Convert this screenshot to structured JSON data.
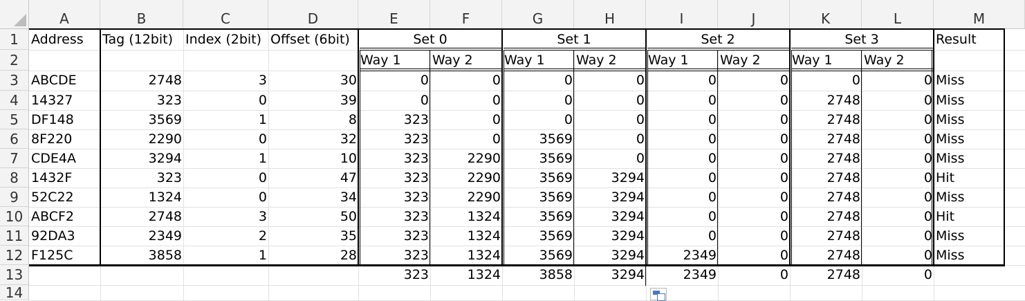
{
  "columns": [
    "A",
    "B",
    "C",
    "D",
    "E",
    "F",
    "G",
    "H",
    "I",
    "J",
    "K",
    "L",
    "M"
  ],
  "rows": [
    "1",
    "2",
    "3",
    "4",
    "5",
    "6",
    "7",
    "8",
    "9",
    "10",
    "11",
    "12",
    "13",
    "14"
  ],
  "header": {
    "address": "Address",
    "tag": "Tag (12bit)",
    "index": "Index (2bit)",
    "offset": "Offset (6bit)",
    "sets": [
      "Set 0",
      "Set 1",
      "Set 2",
      "Set 3"
    ],
    "result": "Result",
    "way1": "Way 1",
    "way2": "Way 2"
  },
  "table": [
    {
      "address": "ABCDE",
      "tag": "2748",
      "index": "3",
      "offset": "30",
      "ways": [
        "0",
        "0",
        "0",
        "0",
        "0",
        "0",
        "0",
        "0"
      ],
      "result": "Miss"
    },
    {
      "address": "14327",
      "tag": "323",
      "index": "0",
      "offset": "39",
      "ways": [
        "0",
        "0",
        "0",
        "0",
        "0",
        "0",
        "2748",
        "0"
      ],
      "result": "Miss"
    },
    {
      "address": "DF148",
      "tag": "3569",
      "index": "1",
      "offset": "8",
      "ways": [
        "323",
        "0",
        "0",
        "0",
        "0",
        "0",
        "2748",
        "0"
      ],
      "result": "Miss"
    },
    {
      "address": "8F220",
      "tag": "2290",
      "index": "0",
      "offset": "32",
      "ways": [
        "323",
        "0",
        "3569",
        "0",
        "0",
        "0",
        "2748",
        "0"
      ],
      "result": "Miss"
    },
    {
      "address": "CDE4A",
      "tag": "3294",
      "index": "1",
      "offset": "10",
      "ways": [
        "323",
        "2290",
        "3569",
        "0",
        "0",
        "0",
        "2748",
        "0"
      ],
      "result": "Miss"
    },
    {
      "address": "1432F",
      "tag": "323",
      "index": "0",
      "offset": "47",
      "ways": [
        "323",
        "2290",
        "3569",
        "3294",
        "0",
        "0",
        "2748",
        "0"
      ],
      "result": "Hit"
    },
    {
      "address": "52C22",
      "tag": "1324",
      "index": "0",
      "offset": "34",
      "ways": [
        "323",
        "2290",
        "3569",
        "3294",
        "0",
        "0",
        "2748",
        "0"
      ],
      "result": "Miss"
    },
    {
      "address": "ABCF2",
      "tag": "2748",
      "index": "3",
      "offset": "50",
      "ways": [
        "323",
        "1324",
        "3569",
        "3294",
        "0",
        "0",
        "2748",
        "0"
      ],
      "result": "Hit"
    },
    {
      "address": "92DA3",
      "tag": "2349",
      "index": "2",
      "offset": "35",
      "ways": [
        "323",
        "1324",
        "3569",
        "3294",
        "0",
        "0",
        "2748",
        "0"
      ],
      "result": "Miss"
    },
    {
      "address": "F125C",
      "tag": "3858",
      "index": "1",
      "offset": "28",
      "ways": [
        "323",
        "1324",
        "3569",
        "3294",
        "2349",
        "0",
        "2748",
        "0"
      ],
      "result": "Miss"
    }
  ],
  "final_row": [
    "323",
    "1324",
    "3858",
    "3294",
    "2349",
    "0",
    "2748",
    "0"
  ],
  "colors": {
    "grid": "#e1e1e1",
    "header_bg": "#f3f3f3",
    "border": "#000000",
    "accent": "#4a78c2"
  },
  "icons": {
    "paste_options": "paste-options-icon",
    "select_all": "select-all-corner-icon"
  }
}
